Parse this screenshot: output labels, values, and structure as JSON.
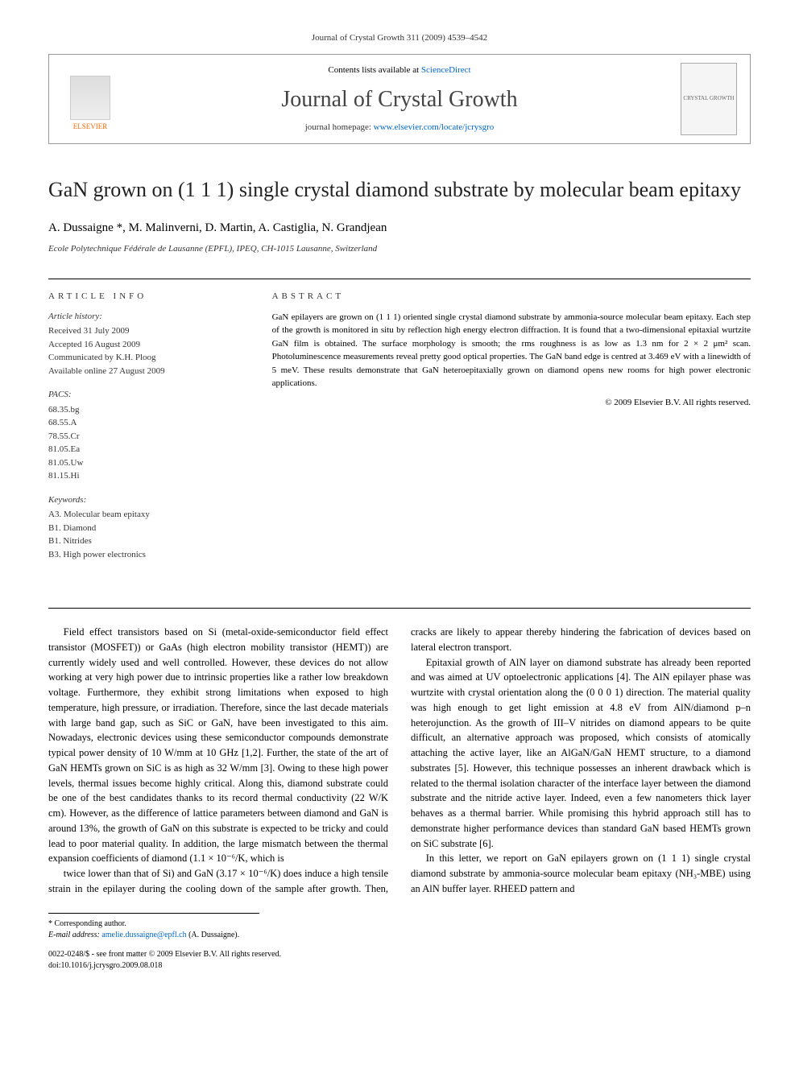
{
  "journal_ref": "Journal of Crystal Growth 311 (2009) 4539–4542",
  "header": {
    "contents_prefix": "Contents lists available at ",
    "contents_link": "ScienceDirect",
    "journal_name": "Journal of Crystal Growth",
    "homepage_prefix": "journal homepage: ",
    "homepage_link": "www.elsevier.com/locate/jcrysgro",
    "publisher": "ELSEVIER",
    "cover_label": "CRYSTAL GROWTH"
  },
  "title": "GaN grown on (1 1 1) single crystal diamond substrate by molecular beam epitaxy",
  "authors": "A. Dussaigne *, M. Malinverni, D. Martin, A. Castiglia, N. Grandjean",
  "affiliation": "Ecole Polytechnique Fédérale de Lausanne (EPFL), IPEQ, CH-1015 Lausanne, Switzerland",
  "article_info": {
    "label": "ARTICLE INFO",
    "history_heading": "Article history:",
    "history": [
      "Received 31 July 2009",
      "Accepted 16 August 2009",
      "Communicated by K.H. Ploog",
      "Available online 27 August 2009"
    ],
    "pacs_heading": "PACS:",
    "pacs": [
      "68.35.bg",
      "68.55.A",
      "78.55.Cr",
      "81.05.Ea",
      "81.05.Uw",
      "81.15.Hi"
    ],
    "keywords_heading": "Keywords:",
    "keywords": [
      "A3. Molecular beam epitaxy",
      "B1. Diamond",
      "B1. Nitrides",
      "B3. High power electronics"
    ]
  },
  "abstract": {
    "label": "ABSTRACT",
    "text": "GaN epilayers are grown on (1 1 1) oriented single crystal diamond substrate by ammonia-source molecular beam epitaxy. Each step of the growth is monitored in situ by reflection high energy electron diffraction. It is found that a two-dimensional epitaxial wurtzite GaN film is obtained. The surface morphology is smooth; the rms roughness is as low as 1.3 nm for 2 × 2 μm² scan. Photoluminescence measurements reveal pretty good optical properties. The GaN band edge is centred at 3.469 eV with a linewidth of 5 meV. These results demonstrate that GaN heteroepitaxially grown on diamond opens new rooms for high power electronic applications.",
    "copyright": "© 2009 Elsevier B.V. All rights reserved."
  },
  "body": {
    "p1": "Field effect transistors based on Si (metal-oxide-semiconductor field effect transistor (MOSFET)) or GaAs (high electron mobility transistor (HEMT)) are currently widely used and well controlled. However, these devices do not allow working at very high power due to intrinsic properties like a rather low breakdown voltage. Furthermore, they exhibit strong limitations when exposed to high temperature, high pressure, or irradiation. Therefore, since the last decade materials with large band gap, such as SiC or GaN, have been investigated to this aim. Nowadays, electronic devices using these semiconductor compounds demonstrate typical power density of 10 W/mm at 10 GHz [1,2]. Further, the state of the art of GaN HEMTs grown on SiC is as high as 32 W/mm [3]. Owing to these high power levels, thermal issues become highly critical. Along this, diamond substrate could be one of the best candidates thanks to its record thermal conductivity (22 W/K cm). However, as the difference of lattice parameters between diamond and GaN is around 13%, the growth of GaN on this substrate is expected to be tricky and could lead to poor material quality. In addition, the large mismatch between the thermal expansion coefficients of diamond (1.1 × 10⁻⁶/K, which is",
    "p2": "twice lower than that of Si) and GaN (3.17 × 10⁻⁶/K) does induce a high tensile strain in the epilayer during the cooling down of the sample after growth. Then, cracks are likely to appear thereby hindering the fabrication of devices based on lateral electron transport.",
    "p3": "Epitaxial growth of AlN layer on diamond substrate has already been reported and was aimed at UV optoelectronic applications [4]. The AlN epilayer phase was wurtzite with crystal orientation along the (0 0 0 1) direction. The material quality was high enough to get light emission at 4.8 eV from AlN/diamond p–n heterojunction. As the growth of III–V nitrides on diamond appears to be quite difficult, an alternative approach was proposed, which consists of atomically attaching the active layer, like an AlGaN/GaN HEMT structure, to a diamond substrates [5]. However, this technique possesses an inherent drawback which is related to the thermal isolation character of the interface layer between the diamond substrate and the nitride active layer. Indeed, even a few nanometers thick layer behaves as a thermal barrier. While promising this hybrid approach still has to demonstrate higher performance devices than standard GaN based HEMTs grown on SiC substrate [6].",
    "p4": "In this letter, we report on GaN epilayers grown on (1 1 1) single crystal diamond substrate by ammonia-source molecular beam epitaxy (NH₃-MBE) using an AlN buffer layer. RHEED pattern and"
  },
  "footnote": {
    "corresponding": "* Corresponding author.",
    "email_label": "E-mail address: ",
    "email": "amelie.dussaigne@epfl.ch",
    "email_suffix": " (A. Dussaigne)."
  },
  "doi": {
    "line1": "0022-0248/$ - see front matter © 2009 Elsevier B.V. All rights reserved.",
    "line2": "doi:10.1016/j.jcrysgro.2009.08.018"
  },
  "colors": {
    "link": "#0066cc",
    "text": "#000000",
    "elsevier": "#ff6600"
  }
}
